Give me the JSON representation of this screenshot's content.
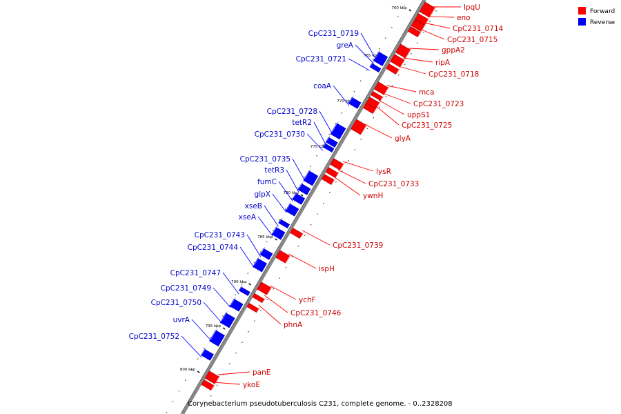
{
  "legend": {
    "forward": {
      "label": "Forward",
      "color": "#ff0000"
    },
    "reverse": {
      "label": "Reverse",
      "color": "#0000ff"
    }
  },
  "caption": "Corynebacterium pseudotuberculosis C231, complete genome. - 0..2328208",
  "ticks": [
    "760 kbp",
    "765 kbp",
    "770 kbp",
    "775 kbp",
    "780 kbp",
    "785 kbp",
    "790 kbp",
    "795 kbp",
    "800 kbp"
  ],
  "forward_genes": [
    {
      "name": "lpqU"
    },
    {
      "name": "eno"
    },
    {
      "name": "CpC231_0714"
    },
    {
      "name": "CpC231_0715"
    },
    {
      "name": "gppA2"
    },
    {
      "name": "ripA"
    },
    {
      "name": "CpC231_0718"
    },
    {
      "name": "mca"
    },
    {
      "name": "CpC231_0723"
    },
    {
      "name": "uppS1"
    },
    {
      "name": "CpC231_0725"
    },
    {
      "name": "glyA"
    },
    {
      "name": "lysR"
    },
    {
      "name": "CpC231_0733"
    },
    {
      "name": "ywnH"
    },
    {
      "name": "CpC231_0739"
    },
    {
      "name": "ispH"
    },
    {
      "name": "ychF"
    },
    {
      "name": "CpC231_0746"
    },
    {
      "name": "phnA"
    },
    {
      "name": "panE"
    },
    {
      "name": "ykoE"
    }
  ],
  "reverse_genes": [
    {
      "name": "CpC231_0719"
    },
    {
      "name": "greA"
    },
    {
      "name": "CpC231_0721"
    },
    {
      "name": "coaA"
    },
    {
      "name": "CpC231_0728"
    },
    {
      "name": "tetR2"
    },
    {
      "name": "CpC231_0730"
    },
    {
      "name": "CpC231_0735"
    },
    {
      "name": "tetR3"
    },
    {
      "name": "fumC"
    },
    {
      "name": "glpX"
    },
    {
      "name": "xseB"
    },
    {
      "name": "xseA"
    },
    {
      "name": "CpC231_0743"
    },
    {
      "name": "CpC231_0744"
    },
    {
      "name": "CpC231_0747"
    },
    {
      "name": "CpC231_0749"
    },
    {
      "name": "CpC231_0750"
    },
    {
      "name": "uvrA"
    },
    {
      "name": "CpC231_0752"
    }
  ]
}
